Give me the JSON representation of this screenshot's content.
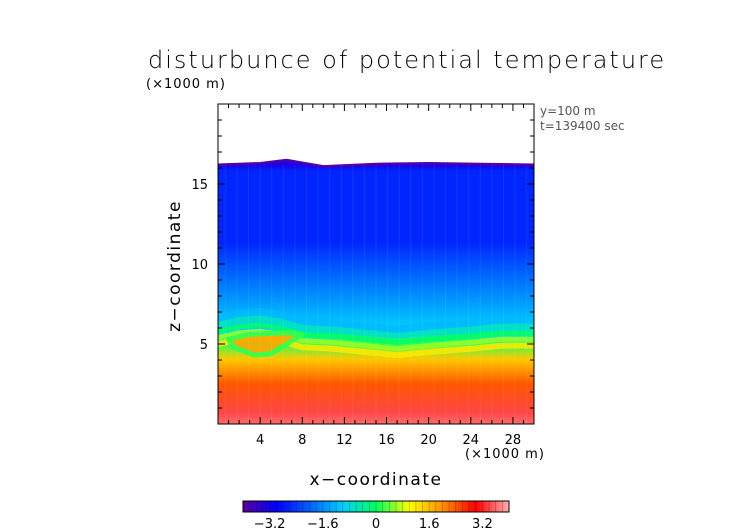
{
  "chart_data": {
    "type": "heatmap",
    "title": "disturbunce of potential temperature",
    "xlabel": "x−coordinate",
    "ylabel": "z−coordinate",
    "x_unit": "(×1000 m)",
    "z_unit": "(×1000 m)",
    "annotations": [
      "y=100 m",
      "t=139400 sec"
    ],
    "xlim": [
      0,
      30
    ],
    "ylim": [
      0,
      20
    ],
    "x_ticks": [
      4,
      8,
      12,
      16,
      20,
      24,
      28
    ],
    "x_tick_labels": [
      "4",
      "8",
      "12",
      "16",
      "20",
      "24",
      "28"
    ],
    "y_ticks": [
      5,
      10,
      15
    ],
    "y_tick_labels": [
      "5",
      "10",
      "15"
    ],
    "colorbar": {
      "range": [
        -4,
        4
      ],
      "ticks": [
        -3.2,
        -1.6,
        0,
        1.6,
        3.2
      ],
      "tick_labels": [
        "−3.2",
        "−1.6",
        "0",
        "1.6",
        "3.2"
      ],
      "colors": [
        "#5a00a0",
        "#0000ff",
        "#0060ff",
        "#00d0ff",
        "#00ff60",
        "#ffff00",
        "#ff9000",
        "#ff0000",
        "#ffb0b0"
      ]
    },
    "fields": {
      "top_of_data_km": 16.2,
      "top_boundary_points": [
        [
          0,
          16.2
        ],
        [
          4,
          16.3
        ],
        [
          6.5,
          16.5
        ],
        [
          10,
          16.1
        ],
        [
          15,
          16.25
        ],
        [
          20,
          16.3
        ],
        [
          25,
          16.25
        ],
        [
          30,
          16.2
        ]
      ],
      "interface_points": [
        [
          0,
          5.7
        ],
        [
          2,
          6.0
        ],
        [
          4,
          6.1
        ],
        [
          6,
          5.9
        ],
        [
          8,
          5.5
        ],
        [
          11,
          5.4
        ],
        [
          14,
          5.2
        ],
        [
          17,
          5.0
        ],
        [
          20,
          5.2
        ],
        [
          24,
          5.4
        ],
        [
          27,
          5.6
        ],
        [
          30,
          5.6
        ]
      ],
      "fold_points": [
        [
          1,
          5.3
        ],
        [
          3,
          5.6
        ],
        [
          6.5,
          5.7
        ],
        [
          8,
          5.6
        ],
        [
          6.5,
          5.0
        ],
        [
          5,
          4.4
        ],
        [
          3.5,
          4.3
        ],
        [
          1.5,
          4.8
        ]
      ],
      "bands": [
        {
          "z_range": [
            0,
            1.5
          ],
          "value": 3.4
        },
        {
          "z_range": [
            1.5,
            3.5
          ],
          "value": 2.4
        },
        {
          "z_range": [
            3.5,
            4.6
          ],
          "value": 1.5
        },
        {
          "z_range": [
            4.6,
            5.4
          ],
          "value": 0.2
        },
        {
          "z_range": [
            5.4,
            6.5
          ],
          "value": -1.0
        },
        {
          "z_range": [
            6.5,
            16.2
          ],
          "value": -2.6
        }
      ]
    }
  }
}
